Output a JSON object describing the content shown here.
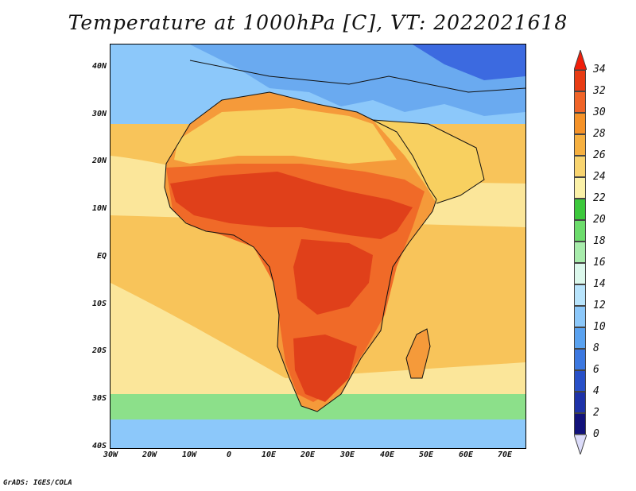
{
  "title": "Temperature at 1000hPa [C], VT: 2022021618",
  "credit": "GrADS: IGES/COLA",
  "axes": {
    "lat_ticks": [
      "40N",
      "30N",
      "20N",
      "10N",
      "EQ",
      "10S",
      "20S",
      "30S",
      "40S"
    ],
    "lon_ticks": [
      "30W",
      "20W",
      "10W",
      "0",
      "10E",
      "20E",
      "30E",
      "40E",
      "50E",
      "60E",
      "70E"
    ]
  },
  "colorbar": {
    "labels": [
      "34",
      "32",
      "30",
      "28",
      "26",
      "24",
      "22",
      "20",
      "18",
      "16",
      "14",
      "12",
      "10",
      "8",
      "6",
      "4",
      "2",
      "0"
    ],
    "colors": [
      "#f01e0a",
      "#e83c14",
      "#f06428",
      "#f59228",
      "#f6b040",
      "#f8d470",
      "#fbf1a8",
      "#3cc83c",
      "#6cdc6c",
      "#a8ecac",
      "#dcf8ec",
      "#b8e4fc",
      "#8cc8fa",
      "#5aa2f0",
      "#3c78e0",
      "#2850c8",
      "#1e32a8",
      "#12127a",
      "#dcdcfa"
    ]
  },
  "map_colors": {
    "ocean_tropical": "#f8c45a",
    "ocean_subtropical": "#fbe69a",
    "ocean_cool": "#8ce08a",
    "ocean_cold": "#8cc8fa",
    "land_hot": "#e0401a",
    "land_warm": "#f06a28",
    "land_mild": "#f59a3a",
    "sahara": "#f8d060",
    "mediterranean": "#a8e4b4",
    "europe": "#6aaaf0",
    "europe_cold": "#3c6ae0",
    "coast": "#111111"
  }
}
